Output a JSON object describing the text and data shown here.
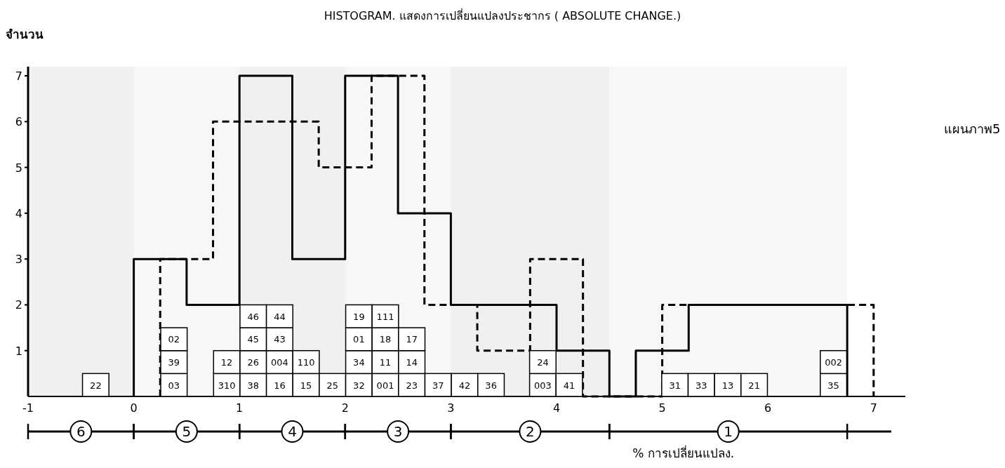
{
  "chart_data": {
    "type": "histogram",
    "title": "HISTOGRAM. แสดงการเปลี่ยนแปลงประชากร ( ABSOLUTE CHANGE.)",
    "xlabel": "% การเปลี่ยนแปลง.",
    "ylabel": "จำนวน",
    "series": [
      {
        "color": "#000000",
        "line_style": "solid",
        "bins": [
          0,
          0.5,
          1,
          1.5,
          2,
          2.5,
          3,
          3.5,
          4,
          4.5,
          4.75,
          5.25,
          6.75
        ],
        "values": [
          3,
          2,
          7,
          3,
          7,
          4,
          2,
          2,
          1,
          0,
          1,
          2
        ]
      },
      {
        "color": "#000000",
        "line_style": "dashed",
        "bins": [
          0.25,
          0.75,
          1.75,
          2.25,
          2.75,
          3.25,
          3.75,
          4.25,
          5,
          7
        ],
        "values": [
          3,
          6,
          5,
          7,
          2,
          1,
          3,
          0,
          2
        ]
      },
      {
        "type": "scatter",
        "color": "#000000",
        "marker": "square",
        "x": [
          -0.36,
          0.38,
          0.38,
          0.38,
          0.88,
          0.88,
          1.13,
          1.13,
          1.13,
          1.13,
          1.38,
          1.38,
          1.38,
          1.38,
          1.63,
          1.63,
          1.88,
          2.13,
          2.13,
          2.13,
          2.13,
          2.38,
          2.38,
          2.38,
          2.38,
          2.63,
          2.63,
          2.63,
          2.88,
          3.13,
          3.38,
          3.87,
          3.87,
          4.12,
          5.12,
          5.37,
          5.62,
          5.87,
          6.62,
          6.62
        ],
        "values": [
          0.25,
          0.25,
          0.75,
          1.25,
          0.25,
          0.75,
          0.25,
          0.75,
          1.25,
          1.75,
          0.25,
          0.75,
          1.25,
          1.75,
          0.25,
          0.75,
          0.25,
          0.25,
          0.75,
          1.25,
          1.75,
          0.25,
          0.75,
          1.25,
          1.75,
          0.25,
          0.75,
          1.25,
          0.25,
          0.25,
          0.25,
          0.25,
          0.75,
          0.25,
          0.25,
          0.25,
          0.25,
          0.25,
          0.25,
          0.75
        ]
      }
    ],
    "xlim": [
      -1,
      7.3
    ],
    "xticks": [
      -1,
      0,
      1,
      2,
      3,
      4,
      5,
      6,
      7
    ],
    "ylim": [
      0,
      7.2
    ],
    "yticks": [
      1,
      2,
      3,
      4,
      5,
      6,
      7
    ],
    "bands": [
      {
        "axis": "x",
        "from": -1,
        "to": 0,
        "label": "6",
        "color": "#f0f0f0"
      },
      {
        "axis": "x",
        "from": 0,
        "to": 1,
        "label": "5",
        "color": "#f7f7f7"
      },
      {
        "axis": "x",
        "from": 1,
        "to": 2,
        "label": "4",
        "color": "#f0f0f0"
      },
      {
        "axis": "x",
        "from": 2,
        "to": 3,
        "label": "3",
        "color": "#f7f7f7"
      },
      {
        "axis": "x",
        "from": 3,
        "to": 4.5,
        "label": "2",
        "color": "#f0f0f0"
      },
      {
        "axis": "x",
        "from": 4.5,
        "to": 6.75,
        "label": "1",
        "color": "#f7f7f7"
      }
    ],
    "grid": false,
    "annotations": [
      "แผนภาพ5",
      {
        "text": "22",
        "x": -0.36,
        "y": 0.25
      },
      {
        "text": "03",
        "x": 0.38,
        "y": 0.25
      },
      {
        "text": "39",
        "x": 0.38,
        "y": 0.75
      },
      {
        "text": "02",
        "x": 0.38,
        "y": 1.25
      },
      {
        "text": "310",
        "x": 0.88,
        "y": 0.25
      },
      {
        "text": "12",
        "x": 0.88,
        "y": 0.75
      },
      {
        "text": "38",
        "x": 1.13,
        "y": 0.25
      },
      {
        "text": "26",
        "x": 1.13,
        "y": 0.75
      },
      {
        "text": "45",
        "x": 1.13,
        "y": 1.25
      },
      {
        "text": "46",
        "x": 1.13,
        "y": 1.75
      },
      {
        "text": "16",
        "x": 1.38,
        "y": 0.25
      },
      {
        "text": "004",
        "x": 1.38,
        "y": 0.75
      },
      {
        "text": "43",
        "x": 1.38,
        "y": 1.25
      },
      {
        "text": "44",
        "x": 1.38,
        "y": 1.75
      },
      {
        "text": "15",
        "x": 1.63,
        "y": 0.25
      },
      {
        "text": "110",
        "x": 1.63,
        "y": 0.75
      },
      {
        "text": "25",
        "x": 1.88,
        "y": 0.25
      },
      {
        "text": "32",
        "x": 2.13,
        "y": 0.25
      },
      {
        "text": "34",
        "x": 2.13,
        "y": 0.75
      },
      {
        "text": "01",
        "x": 2.13,
        "y": 1.25
      },
      {
        "text": "19",
        "x": 2.13,
        "y": 1.75
      },
      {
        "text": "001",
        "x": 2.38,
        "y": 0.25
      },
      {
        "text": "11",
        "x": 2.38,
        "y": 0.75
      },
      {
        "text": "18",
        "x": 2.38,
        "y": 1.25
      },
      {
        "text": "111",
        "x": 2.38,
        "y": 1.75
      },
      {
        "text": "23",
        "x": 2.63,
        "y": 0.25
      },
      {
        "text": "14",
        "x": 2.63,
        "y": 0.75
      },
      {
        "text": "17",
        "x": 2.63,
        "y": 1.25
      },
      {
        "text": "37",
        "x": 2.88,
        "y": 0.25
      },
      {
        "text": "42",
        "x": 3.13,
        "y": 0.25
      },
      {
        "text": "36",
        "x": 3.38,
        "y": 0.25
      },
      {
        "text": "003",
        "x": 3.87,
        "y": 0.25
      },
      {
        "text": "24",
        "x": 3.87,
        "y": 0.75
      },
      {
        "text": "41",
        "x": 4.12,
        "y": 0.25
      },
      {
        "text": "31",
        "x": 5.12,
        "y": 0.25
      },
      {
        "text": "33",
        "x": 5.37,
        "y": 0.25
      },
      {
        "text": "13",
        "x": 5.62,
        "y": 0.25
      },
      {
        "text": "21",
        "x": 5.87,
        "y": 0.25
      },
      {
        "text": "35",
        "x": 6.62,
        "y": 0.25
      },
      {
        "text": "002",
        "x": 6.62,
        "y": 0.75
      }
    ]
  }
}
